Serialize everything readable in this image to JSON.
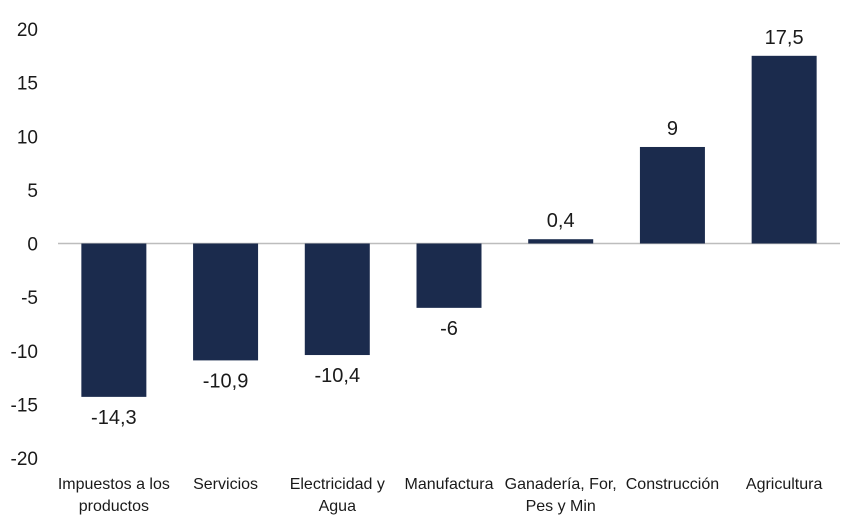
{
  "chart_data": {
    "type": "bar",
    "categories": [
      [
        "Impuestos a los",
        "productos"
      ],
      [
        "Servicios"
      ],
      [
        "Electricidad y",
        "Agua"
      ],
      [
        "Manufactura"
      ],
      [
        "Ganadería, For,",
        "Pes y Min"
      ],
      [
        "Construcción"
      ],
      [
        "Agricultura"
      ]
    ],
    "values": [
      -14.3,
      -10.9,
      -10.4,
      -6,
      0.4,
      9,
      17.5
    ],
    "data_labels": [
      "-14,3",
      "-10,9",
      "-10,4",
      "-6",
      "0,4",
      "9",
      "17,5"
    ],
    "yticks": [
      "20",
      "15",
      "10",
      "5",
      "0",
      "-5",
      "-10",
      "-15",
      "-20"
    ],
    "ylim": [
      -20,
      20
    ],
    "grid": false,
    "bar_color": "#1b2b4d",
    "axis_color": "#bdbdbd"
  }
}
